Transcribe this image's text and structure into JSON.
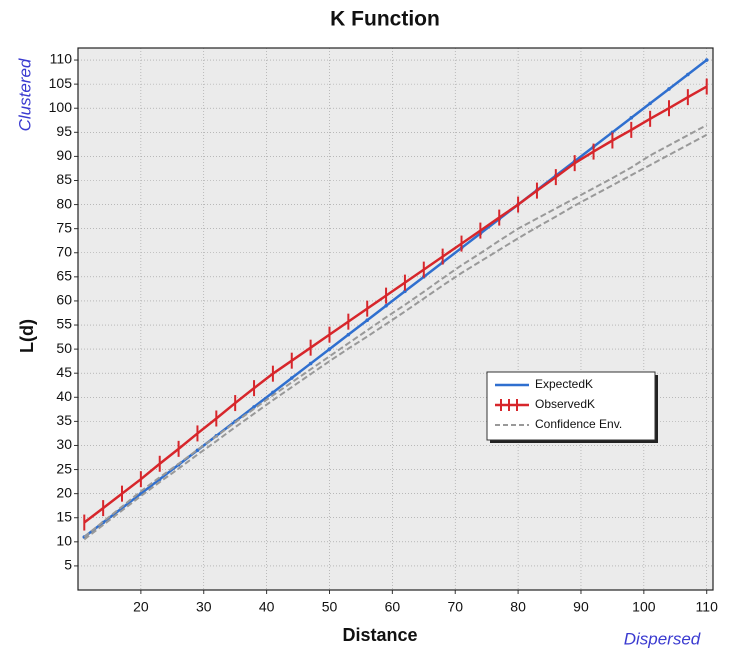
{
  "chart_data": {
    "type": "line",
    "title": "K Function",
    "x_label": "Distance",
    "y_label": "L(d)",
    "annotations": [
      "Clustered",
      "Dispersed"
    ],
    "x": [
      11,
      14,
      17,
      20,
      23,
      26,
      29,
      32,
      35,
      38,
      41,
      44,
      47,
      50,
      53,
      56,
      59,
      62,
      65,
      68,
      71,
      74,
      77,
      80,
      83,
      86,
      89,
      92,
      95,
      98,
      101,
      104,
      107,
      110
    ],
    "series": [
      {
        "name": "ExpectedK",
        "color": "#2f6fcf",
        "marker": "dot",
        "values": [
          11,
          14,
          17,
          20,
          23,
          26,
          29,
          32,
          35,
          38,
          41,
          44,
          47,
          50,
          53,
          56,
          59,
          62,
          65,
          68,
          71,
          74,
          77,
          80,
          83,
          86,
          89,
          92,
          95,
          98,
          101,
          104,
          107,
          110
        ]
      },
      {
        "name": "ObservedK",
        "color": "#d7262b",
        "marker": "tick",
        "values": [
          14,
          17,
          20,
          23,
          26.2,
          29.3,
          32.5,
          35.6,
          38.8,
          41.9,
          44.9,
          47.6,
          50.3,
          53,
          55.7,
          58.4,
          61.1,
          63.8,
          66.5,
          69.2,
          71.9,
          74.6,
          77.3,
          80,
          82.9,
          85.7,
          88.6,
          91,
          93.3,
          95.5,
          97.8,
          100,
          102.3,
          104.5
        ]
      },
      {
        "name": "Confidence Env.",
        "color": "#999999",
        "dashed": true,
        "values": [
          10.5,
          13.5,
          16.5,
          19.5,
          22.4,
          25.2,
          28.1,
          30.9,
          33.8,
          36.6,
          39.4,
          42.1,
          44.8,
          47.5,
          50.1,
          52.6,
          55.2,
          57.8,
          60.5,
          63.2,
          65.8,
          68.2,
          70.6,
          73,
          75.3,
          77.5,
          79.8,
          81.9,
          84,
          86.1,
          88.2,
          90.3,
          92.4,
          94.5
        ],
        "upper": [
          11,
          14.2,
          17.3,
          20.5,
          23.4,
          26.2,
          29.1,
          31.9,
          34.8,
          37.6,
          40.4,
          43.1,
          45.8,
          48.5,
          51.2,
          53.9,
          56.6,
          59.2,
          61.9,
          64.7,
          67.4,
          69.9,
          72.5,
          75,
          77.1,
          79.2,
          81.3,
          83.4,
          85.5,
          87.7,
          90.2,
          92.3,
          94.4,
          96.5
        ]
      }
    ],
    "xlim": [
      10,
      111
    ],
    "ylim": [
      0,
      112.5
    ],
    "xticks": [
      20,
      30,
      40,
      50,
      60,
      70,
      80,
      90,
      100,
      110
    ],
    "yticks": [
      5,
      10,
      15,
      20,
      25,
      30,
      35,
      40,
      45,
      50,
      55,
      60,
      65,
      70,
      75,
      80,
      85,
      90,
      95,
      100,
      105,
      110
    ],
    "grid": true,
    "legend_position": "right"
  }
}
